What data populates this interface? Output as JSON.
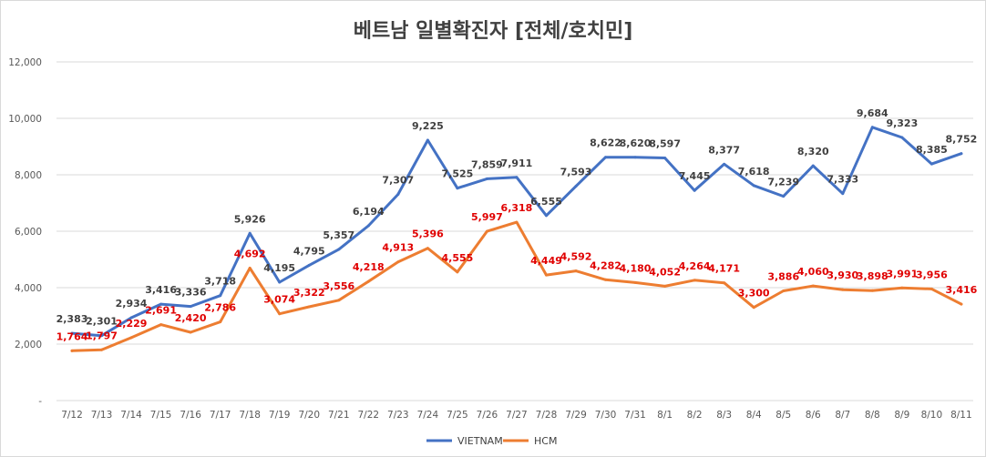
{
  "chart_data": {
    "type": "line",
    "title": "베트남  일별확진자 [전체/호치민]",
    "xlabel": "",
    "ylabel": "",
    "ylim": [
      0,
      12000
    ],
    "y_ticks": [
      {
        "value": 0,
        "label": "-"
      },
      {
        "value": 2000,
        "label": "2,000"
      },
      {
        "value": 4000,
        "label": "4,000"
      },
      {
        "value": 6000,
        "label": "6,000"
      },
      {
        "value": 8000,
        "label": "8,000"
      },
      {
        "value": 10000,
        "label": "10,000"
      },
      {
        "value": 12000,
        "label": "12,000"
      }
    ],
    "grid": true,
    "legend_position": "bottom",
    "categories": [
      "7/12",
      "7/13",
      "7/14",
      "7/15",
      "7/16",
      "7/17",
      "7/18",
      "7/19",
      "7/20",
      "7/21",
      "7/22",
      "7/23",
      "7/24",
      "7/25",
      "7/26",
      "7/27",
      "7/28",
      "7/29",
      "7/30",
      "7/31",
      "8/1",
      "8/2",
      "8/3",
      "8/4",
      "8/5",
      "8/6",
      "8/7",
      "8/8",
      "8/9",
      "8/10",
      "8/11"
    ],
    "series": [
      {
        "name": "VIETNAM",
        "color": "#4472C4",
        "label_color": "#404040",
        "values": [
          2383,
          2301,
          2934,
          3416,
          3336,
          3718,
          5926,
          4195,
          4795,
          5357,
          6194,
          7307,
          9225,
          7525,
          7859,
          7911,
          6555,
          7593,
          8622,
          8620,
          8597,
          7445,
          8377,
          7618,
          7239,
          8320,
          7333,
          9684,
          9323,
          8385,
          8752
        ],
        "labels": [
          {
            "text": "2,383",
            "show": true
          },
          {
            "text": "2,301",
            "show": true
          },
          {
            "text": "2,934",
            "show": true
          },
          {
            "text": "3,416",
            "show": true
          },
          {
            "text": "3,336",
            "show": true
          },
          {
            "text": "3,718",
            "show": true
          },
          {
            "text": "5,926",
            "show": true
          },
          {
            "text": "4,195",
            "show": true
          },
          {
            "text": "4,795",
            "show": true
          },
          {
            "text": "5,357",
            "show": true
          },
          {
            "text": "6,194",
            "show": true
          },
          {
            "text": "7,307",
            "show": true
          },
          {
            "text": "9,225",
            "show": true
          },
          {
            "text": "7,525",
            "show": true
          },
          {
            "text": "7,859",
            "show": true
          },
          {
            "text": "7,911",
            "show": true
          },
          {
            "text": "6,555",
            "show": true
          },
          {
            "text": "7,593",
            "show": true
          },
          {
            "text": "8,622",
            "show": true
          },
          {
            "text": "8,620",
            "show": true
          },
          {
            "text": "8,597",
            "show": true
          },
          {
            "text": "7,445",
            "show": true
          },
          {
            "text": "8,377",
            "show": true
          },
          {
            "text": "7,618",
            "show": true
          },
          {
            "text": "7,239",
            "show": true
          },
          {
            "text": "8,320",
            "show": true
          },
          {
            "text": "7,333",
            "show": true
          },
          {
            "text": "9,684",
            "show": true
          },
          {
            "text": "9,323",
            "show": true
          },
          {
            "text": "8,385",
            "show": true
          },
          {
            "text": "8,752",
            "show": true
          }
        ]
      },
      {
        "name": "HCM",
        "color": "#ED7D31",
        "label_color": "#E00000",
        "values": [
          1764,
          1797,
          2229,
          2691,
          2420,
          2786,
          4692,
          3074,
          3322,
          3556,
          4218,
          4913,
          5396,
          4555,
          5997,
          6318,
          4449,
          4592,
          4282,
          4180,
          4052,
          4264,
          4171,
          3300,
          3886,
          4060,
          3930,
          3898,
          3991,
          3956,
          3416
        ],
        "labels": [
          {
            "text": "1,764",
            "show": true
          },
          {
            "text": "1,797",
            "show": true
          },
          {
            "text": "2,229",
            "show": true
          },
          {
            "text": "2,691",
            "show": true
          },
          {
            "text": "2,420",
            "show": true
          },
          {
            "text": "2,786",
            "show": true
          },
          {
            "text": "4,692",
            "show": true
          },
          {
            "text": "3,074",
            "show": true
          },
          {
            "text": "3,322",
            "show": true
          },
          {
            "text": "3,556",
            "show": true
          },
          {
            "text": "4,218",
            "show": true
          },
          {
            "text": "4,913",
            "show": true
          },
          {
            "text": "5,396",
            "show": true
          },
          {
            "text": "4,555",
            "show": true
          },
          {
            "text": "5,997",
            "show": true
          },
          {
            "text": "6,318",
            "show": true
          },
          {
            "text": "4,449",
            "show": true
          },
          {
            "text": "4,592",
            "show": true
          },
          {
            "text": "4,282",
            "show": true
          },
          {
            "text": "4,180",
            "show": true
          },
          {
            "text": "4,052",
            "show": true
          },
          {
            "text": "4,264",
            "show": true
          },
          {
            "text": "4,171",
            "show": true
          },
          {
            "text": "3,300",
            "show": true
          },
          {
            "text": "3,886",
            "show": true
          },
          {
            "text": "4,060",
            "show": true
          },
          {
            "text": "3,930",
            "show": true
          },
          {
            "text": "3,898",
            "show": true
          },
          {
            "text": "3,991",
            "show": true
          },
          {
            "text": "3,956",
            "show": true
          },
          {
            "text": "3,416",
            "show": true
          }
        ]
      }
    ]
  }
}
